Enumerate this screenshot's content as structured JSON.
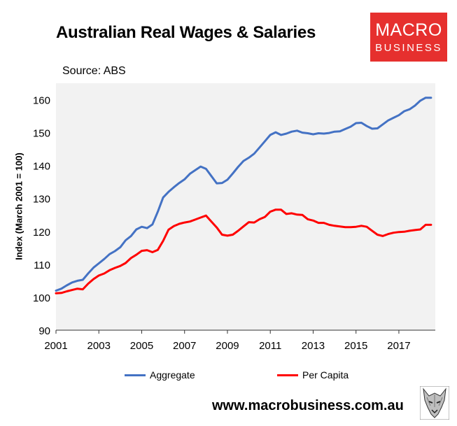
{
  "header": {
    "title": "Australian Real Wages & Salaries",
    "source": "Source: ABS",
    "logo_line1": "MACRO",
    "logo_line2": "BUSINESS",
    "website": "www.macrobusiness.com.au"
  },
  "chart_data": {
    "type": "line",
    "title": "Australian Real Wages & Salaries",
    "ylabel": "Index (March 2001 = 100)",
    "xlabel": "",
    "xlim": [
      2001,
      2018.7
    ],
    "ylim": [
      90,
      165
    ],
    "xticks": [
      "2001",
      "2003",
      "2005",
      "2007",
      "2009",
      "2011",
      "2013",
      "2015",
      "2017"
    ],
    "xtick_values": [
      2001,
      2003,
      2005,
      2007,
      2009,
      2011,
      2013,
      2015,
      2017
    ],
    "yticks": [
      90,
      100,
      110,
      120,
      130,
      140,
      150,
      160
    ],
    "grid": false,
    "legend_position": "bottom",
    "background": "#f2f2f2",
    "series": [
      {
        "name": "Aggregate",
        "color": "#4472c4",
        "x": [
          2001.0,
          2001.25,
          2001.5,
          2001.75,
          2002.0,
          2002.25,
          2002.5,
          2002.75,
          2003.0,
          2003.25,
          2003.5,
          2003.75,
          2004.0,
          2004.25,
          2004.5,
          2004.75,
          2005.0,
          2005.25,
          2005.5,
          2005.75,
          2006.0,
          2006.25,
          2006.5,
          2006.75,
          2007.0,
          2007.25,
          2007.5,
          2007.75,
          2008.0,
          2008.25,
          2008.5,
          2008.75,
          2009.0,
          2009.25,
          2009.5,
          2009.75,
          2010.0,
          2010.25,
          2010.5,
          2010.75,
          2011.0,
          2011.25,
          2011.5,
          2011.75,
          2012.0,
          2012.25,
          2012.5,
          2012.75,
          2013.0,
          2013.25,
          2013.5,
          2013.75,
          2014.0,
          2014.25,
          2014.5,
          2014.75,
          2015.0,
          2015.25,
          2015.5,
          2015.75,
          2016.0,
          2016.25,
          2016.5,
          2016.75,
          2017.0,
          2017.25,
          2017.5,
          2017.75,
          2018.0,
          2018.25,
          2018.5
        ],
        "values": [
          102.0,
          102.6,
          103.6,
          104.5,
          105.0,
          105.3,
          107.2,
          109.0,
          110.3,
          111.6,
          113.1,
          114.0,
          115.2,
          117.3,
          118.6,
          120.6,
          121.4,
          121.0,
          122.1,
          126.0,
          130.3,
          132.0,
          133.4,
          134.7,
          135.8,
          137.5,
          138.6,
          139.7,
          139.0,
          136.8,
          134.6,
          134.7,
          135.7,
          137.6,
          139.6,
          141.4,
          142.4,
          143.6,
          145.5,
          147.4,
          149.3,
          150.1,
          149.3,
          149.7,
          150.3,
          150.6,
          150.0,
          149.8,
          149.5,
          149.8,
          149.7,
          149.9,
          150.3,
          150.4,
          151.1,
          151.8,
          152.9,
          153.0,
          152.0,
          151.2,
          151.3,
          152.5,
          153.7,
          154.5,
          155.3,
          156.5,
          157.1,
          158.2,
          159.7,
          160.6,
          160.6
        ]
      },
      {
        "name": "Per Capita",
        "color": "#ff0000",
        "x": [
          2001.0,
          2001.25,
          2001.5,
          2001.75,
          2002.0,
          2002.25,
          2002.5,
          2002.75,
          2003.0,
          2003.25,
          2003.5,
          2003.75,
          2004.0,
          2004.25,
          2004.5,
          2004.75,
          2005.0,
          2005.25,
          2005.5,
          2005.75,
          2006.0,
          2006.25,
          2006.5,
          2006.75,
          2007.0,
          2007.25,
          2007.5,
          2007.75,
          2008.0,
          2008.25,
          2008.5,
          2008.75,
          2009.0,
          2009.25,
          2009.5,
          2009.75,
          2010.0,
          2010.25,
          2010.5,
          2010.75,
          2011.0,
          2011.25,
          2011.5,
          2011.75,
          2012.0,
          2012.25,
          2012.5,
          2012.75,
          2013.0,
          2013.25,
          2013.5,
          2013.75,
          2014.0,
          2014.25,
          2014.5,
          2014.75,
          2015.0,
          2015.25,
          2015.5,
          2015.75,
          2016.0,
          2016.25,
          2016.5,
          2016.75,
          2017.0,
          2017.25,
          2017.5,
          2017.75,
          2018.0,
          2018.25,
          2018.5
        ],
        "values": [
          101.2,
          101.3,
          101.8,
          102.2,
          102.6,
          102.4,
          104.1,
          105.5,
          106.6,
          107.2,
          108.2,
          108.9,
          109.5,
          110.4,
          111.9,
          112.9,
          114.1,
          114.3,
          113.7,
          114.4,
          117.1,
          120.5,
          121.6,
          122.3,
          122.7,
          123.0,
          123.6,
          124.2,
          124.8,
          123.0,
          121.2,
          119.0,
          118.7,
          119.0,
          120.2,
          121.5,
          122.8,
          122.7,
          123.7,
          124.4,
          126.0,
          126.6,
          126.6,
          125.3,
          125.5,
          125.1,
          125.0,
          123.7,
          123.3,
          122.6,
          122.6,
          122.0,
          121.7,
          121.5,
          121.3,
          121.3,
          121.4,
          121.7,
          121.4,
          120.2,
          119.0,
          118.6,
          119.2,
          119.6,
          119.8,
          119.9,
          120.2,
          120.4,
          120.6,
          122.0,
          122.0
        ]
      }
    ]
  }
}
